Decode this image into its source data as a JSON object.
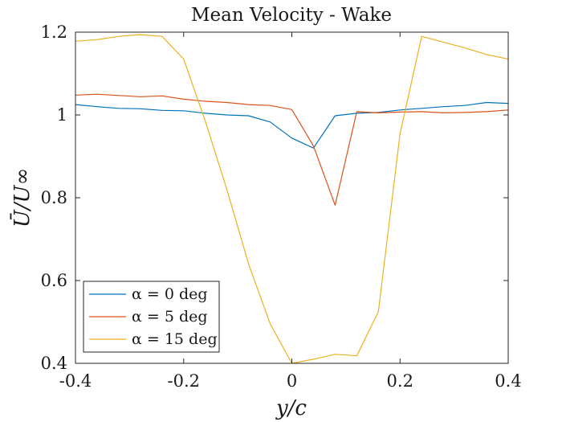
{
  "chart_data": {
    "type": "line",
    "title": "Mean Velocity - Wake",
    "xlabel": "y/c",
    "ylabel": "Ū/U∞",
    "xlim": [
      -0.4,
      0.4
    ],
    "ylim": [
      0.4,
      1.2
    ],
    "xticks": [
      -0.4,
      -0.2,
      0,
      0.2,
      0.4
    ],
    "xtick_labels": [
      "-0.4",
      "-0.2",
      "0",
      "0.2",
      "0.4"
    ],
    "yticks": [
      0.4,
      0.6,
      0.8,
      1.0,
      1.2
    ],
    "ytick_labels": [
      "0.4",
      "0.6",
      "0.8",
      "1",
      "1.2"
    ],
    "grid": false,
    "legend_position": "bottom-left",
    "series": [
      {
        "name": "α = 0 deg",
        "color": "#0072BD",
        "x": [
          -0.4,
          -0.36,
          -0.32,
          -0.28,
          -0.24,
          -0.2,
          -0.16,
          -0.12,
          -0.08,
          -0.04,
          0.0,
          0.04,
          0.08,
          0.12,
          0.16,
          0.2,
          0.24,
          0.28,
          0.32,
          0.36,
          0.4
        ],
        "y": [
          1.025,
          1.02,
          1.016,
          1.015,
          1.011,
          1.01,
          1.004,
          1.0,
          0.998,
          0.983,
          0.944,
          0.92,
          0.998,
          1.004,
          1.006,
          1.012,
          1.016,
          1.02,
          1.023,
          1.03,
          1.028
        ]
      },
      {
        "name": "α = 5 deg",
        "color": "#D95319",
        "x": [
          -0.4,
          -0.36,
          -0.32,
          -0.28,
          -0.24,
          -0.2,
          -0.16,
          -0.12,
          -0.08,
          -0.04,
          0.0,
          0.04,
          0.08,
          0.12,
          0.16,
          0.2,
          0.24,
          0.28,
          0.32,
          0.36,
          0.4
        ],
        "y": [
          1.048,
          1.05,
          1.047,
          1.044,
          1.046,
          1.038,
          1.033,
          1.03,
          1.025,
          1.023,
          1.013,
          0.925,
          0.782,
          1.008,
          1.005,
          1.007,
          1.008,
          1.005,
          1.006,
          1.008,
          1.012
        ]
      },
      {
        "name": "α = 15 deg",
        "color": "#EDB120",
        "x": [
          -0.4,
          -0.36,
          -0.32,
          -0.28,
          -0.24,
          -0.2,
          -0.16,
          -0.12,
          -0.08,
          -0.04,
          0.0,
          0.04,
          0.08,
          0.12,
          0.16,
          0.2,
          0.24,
          0.28,
          0.32,
          0.36,
          0.4
        ],
        "y": [
          1.178,
          1.182,
          1.19,
          1.194,
          1.19,
          1.135,
          0.985,
          0.82,
          0.64,
          0.495,
          0.4,
          0.41,
          0.422,
          0.418,
          0.525,
          0.955,
          1.19,
          1.176,
          1.162,
          1.146,
          1.135
        ]
      }
    ]
  }
}
